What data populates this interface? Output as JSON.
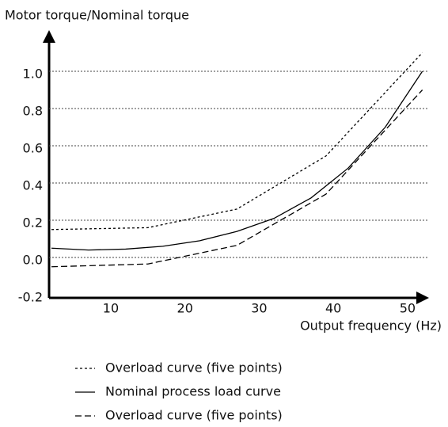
{
  "chart_data": {
    "type": "line",
    "y_label": "Motor torque/Nominal torque",
    "x_label": "Output frequency (Hz)",
    "xlim": [
      2,
      53
    ],
    "ylim": [
      -0.2,
      1.2
    ],
    "xticks": [
      10,
      20,
      30,
      40,
      50
    ],
    "yticks": [
      {
        "value": -0.2,
        "label": "-0.2"
      },
      {
        "value": 0,
        "label": "0.0"
      },
      0.2,
      0.4,
      0.6,
      0.8,
      {
        "value": 1,
        "label": "1.0"
      }
    ],
    "grid": true,
    "series": [
      {
        "name": "Overload curve (five points)",
        "color": "#000000",
        "dash": "3,3",
        "x": [
          2,
          15,
          27,
          39,
          52
        ],
        "values": [
          0.15,
          0.16,
          0.26,
          0.545,
          1.1
        ]
      },
      {
        "name": "Nominal process load curve",
        "color": "#000000",
        "dash": "none",
        "x": [
          2,
          7,
          12,
          17,
          22,
          27,
          32,
          37,
          42,
          47,
          52
        ],
        "values": [
          0.05,
          0.04,
          0.045,
          0.06,
          0.09,
          0.14,
          0.21,
          0.32,
          0.48,
          0.7,
          1.0
        ]
      },
      {
        "name": "Overload curve (five points)",
        "color": "#000000",
        "dash": "8,4",
        "x": [
          2,
          15,
          27,
          39,
          52
        ],
        "values": [
          -0.05,
          -0.035,
          0.065,
          0.34,
          0.9
        ]
      }
    ]
  }
}
